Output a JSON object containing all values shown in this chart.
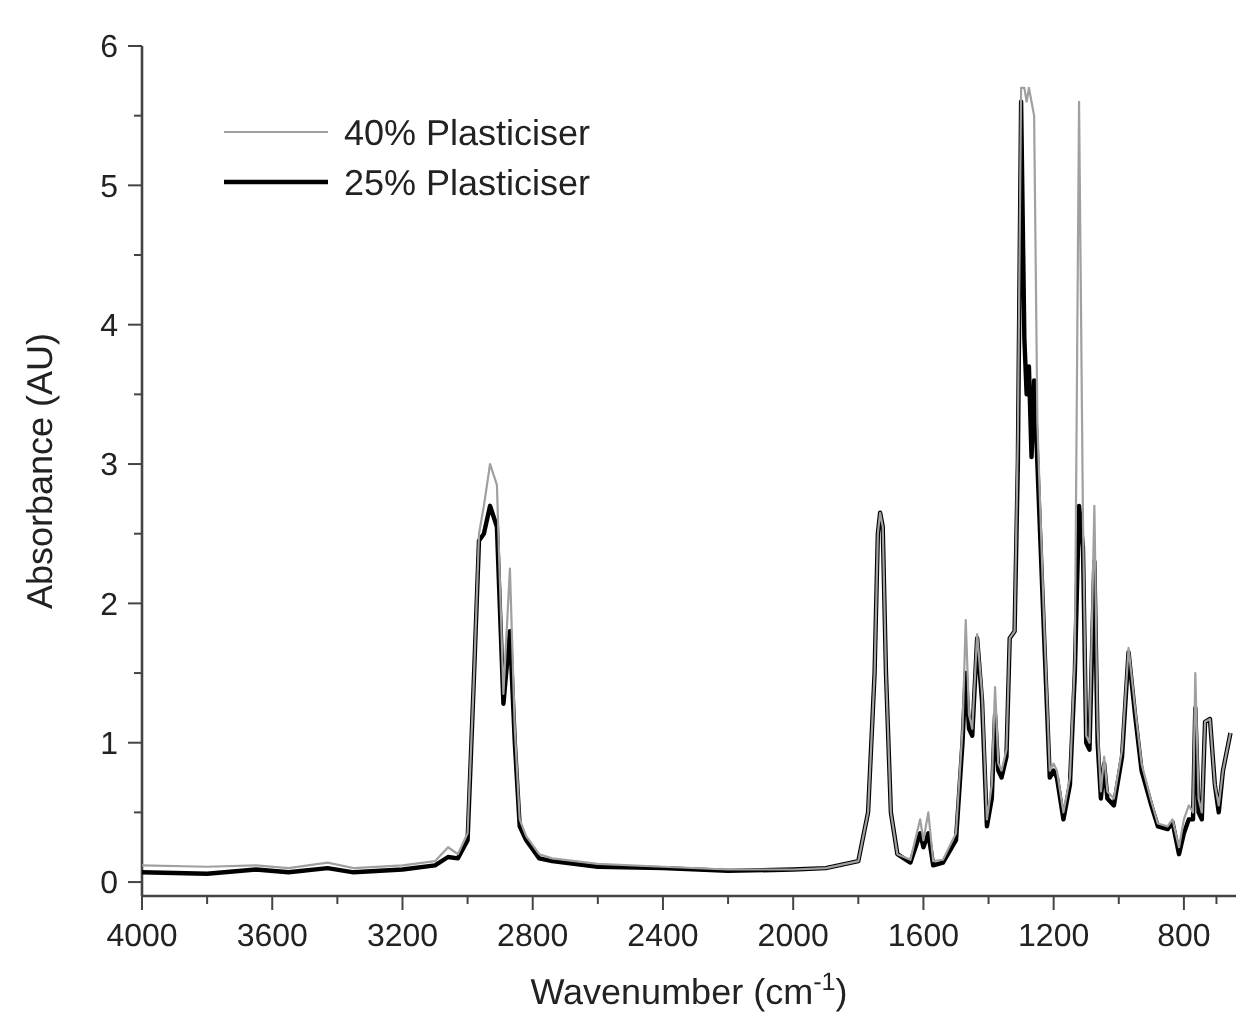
{
  "chart_data": {
    "type": "line",
    "xlabel": "Wavenumber (cm$^{-1}$)",
    "ylabel": "Absorbance (AU)",
    "xlim": [
      4000,
      640
    ],
    "ylim": [
      -0.1,
      6
    ],
    "xticks": [
      4000,
      {
        "value": 3800,
        "label": null
      },
      3600,
      {
        "value": 3400,
        "label": null
      },
      3200,
      {
        "value": 3000,
        "label": null
      },
      2800,
      {
        "value": 2600,
        "label": null
      },
      2400,
      {
        "value": 2200,
        "label": null
      },
      2000,
      {
        "value": 1800,
        "label": null
      },
      1600,
      {
        "value": 1400,
        "label": null
      },
      1200,
      {
        "value": 1000,
        "label": null
      },
      800,
      {
        "value": 700,
        "label": null
      }
    ],
    "yticks": [
      0,
      {
        "value": 0.5,
        "label": null
      },
      1,
      {
        "value": 1.5,
        "label": null
      },
      2,
      {
        "value": 2.5,
        "label": null
      },
      3,
      {
        "value": 3.5,
        "label": null
      },
      4,
      {
        "value": 4.5,
        "label": null
      },
      5,
      {
        "value": 5.5,
        "label": null
      },
      6
    ],
    "grid": false,
    "legend": "top left",
    "marker": "none",
    "line_style": "solid",
    "x": [
      4000,
      3800,
      3650,
      3550,
      3430,
      3350,
      3200,
      3100,
      3060,
      3030,
      3000,
      2980,
      2965,
      2950,
      2931,
      2910,
      2890,
      2870,
      2855,
      2840,
      2820,
      2780,
      2740,
      2600,
      2400,
      2200,
      2000,
      1900,
      1800,
      1770,
      1750,
      1740,
      1733,
      1725,
      1715,
      1700,
      1680,
      1640,
      1610,
      1600,
      1585,
      1570,
      1540,
      1500,
      1480,
      1470,
      1460,
      1450,
      1435,
      1420,
      1405,
      1390,
      1380,
      1370,
      1360,
      1345,
      1335,
      1320,
      1310,
      1300,
      1290,
      1283,
      1276,
      1268,
      1260,
      1250,
      1230,
      1212,
      1200,
      1190,
      1170,
      1150,
      1135,
      1122,
      1110,
      1100,
      1090,
      1075,
      1065,
      1055,
      1045,
      1035,
      1015,
      990,
      970,
      950,
      930,
      900,
      880,
      850,
      835,
      815,
      800,
      785,
      772,
      765,
      755,
      745,
      735,
      720,
      705,
      693,
      680,
      657
    ],
    "series": [
      {
        "name": "40% Plasticiser",
        "color": "#a0a0a0",
        "values": [
          0.12,
          0.11,
          0.12,
          0.1,
          0.14,
          0.1,
          0.12,
          0.15,
          0.25,
          0.2,
          0.35,
          1.5,
          2.5,
          2.7,
          3.0,
          2.85,
          1.35,
          2.25,
          1.1,
          0.45,
          0.33,
          0.2,
          0.17,
          0.13,
          0.11,
          0.09,
          0.09,
          0.1,
          0.15,
          0.5,
          1.5,
          2.5,
          2.65,
          2.55,
          1.5,
          0.5,
          0.2,
          0.16,
          0.45,
          0.3,
          0.5,
          0.15,
          0.16,
          0.35,
          1.1,
          1.88,
          1.2,
          1.1,
          1.78,
          1.35,
          0.45,
          0.7,
          1.4,
          0.85,
          0.8,
          0.95,
          1.75,
          1.8,
          3.2,
          5.7,
          5.7,
          5.6,
          5.7,
          5.6,
          5.5,
          3.3,
          1.9,
          0.8,
          0.85,
          0.8,
          0.5,
          0.75,
          1.6,
          5.6,
          2.6,
          1.05,
          1.0,
          2.7,
          1.1,
          0.65,
          0.9,
          0.65,
          0.6,
          0.95,
          1.68,
          1.25,
          0.85,
          0.58,
          0.42,
          0.4,
          0.45,
          0.25,
          0.45,
          0.55,
          0.5,
          1.5,
          0.6,
          0.5,
          1.15,
          1.17,
          0.7,
          0.55,
          0.8,
          1.07
        ]
      },
      {
        "name": "25% Plasticiser",
        "color": "#000000",
        "values": [
          0.07,
          0.06,
          0.09,
          0.07,
          0.1,
          0.07,
          0.09,
          0.12,
          0.18,
          0.17,
          0.3,
          1.5,
          2.45,
          2.5,
          2.7,
          2.55,
          1.28,
          1.8,
          1.0,
          0.4,
          0.3,
          0.17,
          0.15,
          0.11,
          0.1,
          0.08,
          0.09,
          0.1,
          0.15,
          0.5,
          1.5,
          2.5,
          2.65,
          2.55,
          1.5,
          0.5,
          0.2,
          0.14,
          0.35,
          0.25,
          0.35,
          0.12,
          0.14,
          0.3,
          1.0,
          1.5,
          1.1,
          1.05,
          1.75,
          1.3,
          0.4,
          0.6,
          1.2,
          0.8,
          0.75,
          0.9,
          1.75,
          1.8,
          3.0,
          5.6,
          3.9,
          3.5,
          3.7,
          3.05,
          3.6,
          3.0,
          1.8,
          0.75,
          0.8,
          0.75,
          0.45,
          0.7,
          1.5,
          2.7,
          2.4,
          1.0,
          0.95,
          2.3,
          1.0,
          0.6,
          0.85,
          0.6,
          0.55,
          0.9,
          1.65,
          1.2,
          0.8,
          0.55,
          0.4,
          0.38,
          0.43,
          0.2,
          0.35,
          0.45,
          0.45,
          1.25,
          0.5,
          0.45,
          1.15,
          1.17,
          0.7,
          0.5,
          0.8,
          1.07
        ]
      }
    ]
  }
}
